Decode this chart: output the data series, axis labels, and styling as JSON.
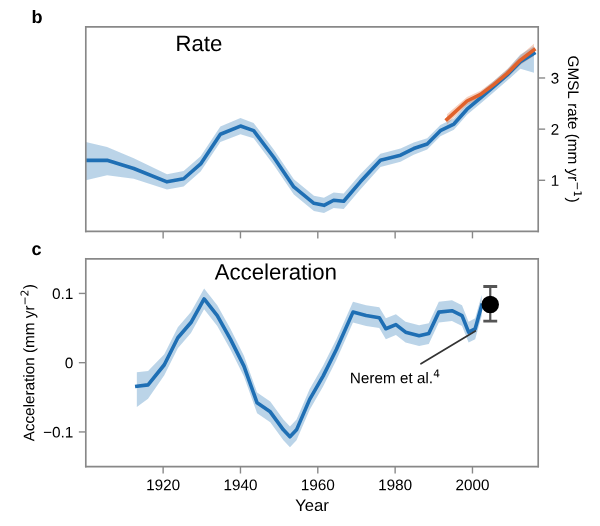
{
  "chart_data": [
    {
      "type": "line",
      "title": "Rate",
      "ylabel": "GMSL rate (mm yr$^{−1}$)",
      "annotations": [
        "b"
      ],
      "xlim": [
        1900,
        2017
      ],
      "xticks": [
        1920,
        1940,
        1960,
        1980,
        2000
      ],
      "ylim": [
        0,
        4
      ],
      "yticks": [
        1,
        2,
        3
      ],
      "tick_labels": "y",
      "grid": false,
      "legend": false,
      "series": [
        {
          "color": "#1f6fb4",
          "x": [
            1900,
            1905.5,
            1912.4,
            1921,
            1925.3,
            1929.7,
            1934.8,
            1940,
            1943.4,
            1948.6,
            1953.8,
            1959,
            1961.6,
            1964.1,
            1966.7,
            1971,
            1976.2,
            1981.4,
            1984.8,
            1988.3,
            1991.7,
            1995.2,
            1998.6,
            2002.1,
            2005.5,
            2009,
            2012.4,
            2015.9
          ],
          "values": [
            1.39,
            1.39,
            1.23,
            0.97,
            1.03,
            1.32,
            1.9,
            2.06,
            1.97,
            1.45,
            0.87,
            0.55,
            0.51,
            0.61,
            0.59,
            0.97,
            1.39,
            1.49,
            1.62,
            1.71,
            1.97,
            2.1,
            2.39,
            2.61,
            2.83,
            3.06,
            3.32,
            3.48
          ],
          "lower": [
            1.0,
            1.1,
            1.03,
            0.82,
            0.88,
            1.17,
            1.75,
            1.9,
            1.82,
            1.3,
            0.72,
            0.4,
            0.36,
            0.46,
            0.44,
            0.82,
            1.26,
            1.36,
            1.5,
            1.6,
            1.86,
            1.99,
            2.28,
            2.5,
            2.72,
            2.95,
            3.18,
            3.1
          ],
          "upper": [
            1.75,
            1.65,
            1.43,
            1.12,
            1.18,
            1.47,
            2.05,
            2.22,
            2.12,
            1.6,
            1.02,
            0.7,
            0.66,
            0.76,
            0.74,
            1.12,
            1.52,
            1.62,
            1.74,
            1.82,
            2.08,
            2.21,
            2.5,
            2.72,
            2.94,
            3.17,
            3.46,
            3.62
          ]
        },
        {
          "color": "#e0622c",
          "x": [
            1993.4,
            1998.6,
            2002.1,
            2005.5,
            2009,
            2012.4,
            2015.9
          ],
          "values": [
            2.19,
            2.55,
            2.68,
            2.87,
            3.09,
            3.35,
            3.55
          ],
          "lower": [
            2.09,
            2.47,
            2.61,
            2.8,
            3.01,
            3.26,
            3.43
          ],
          "upper": [
            2.29,
            2.63,
            2.75,
            2.94,
            3.17,
            3.44,
            3.67
          ]
        }
      ]
    },
    {
      "type": "line",
      "title": "Acceleration",
      "xlabel": "Year",
      "ylabel": "Acceleration (mm yr$^{−2}$)",
      "annotations": [
        "c",
        {
          "text": "Nerem et al.$^{4}$",
          "x": 2002,
          "y": 0.05
        }
      ],
      "xlim": [
        1900,
        2017
      ],
      "xticks": [
        1920,
        1940,
        1960,
        1980,
        2000
      ],
      "ylim": [
        -0.15,
        0.15
      ],
      "yticks": [
        {
          "value": -0.1,
          "label": "−0.1"
        },
        0,
        0.1
      ],
      "grid": false,
      "legend": false,
      "series": [
        {
          "color": "#1f6fb4",
          "x": [
            1913.2,
            1916.1,
            1920.3,
            1923.8,
            1927.2,
            1930.6,
            1934,
            1937.4,
            1940.9,
            1944.3,
            1947.7,
            1951.1,
            1952.8,
            1954.5,
            1957.9,
            1961.4,
            1964.8,
            1969.1,
            1972.5,
            1975.9,
            1977.6,
            1980.2,
            1982.7,
            1986.2,
            1988.7,
            1991.3,
            1994.7,
            1997.3,
            1999,
            2000.7,
            2002.4
          ],
          "values": [
            -0.034,
            -0.032,
            -0.003,
            0.036,
            0.058,
            0.092,
            0.068,
            0.034,
            -0.005,
            -0.058,
            -0.071,
            -0.097,
            -0.107,
            -0.097,
            -0.053,
            -0.019,
            0.019,
            0.073,
            0.068,
            0.065,
            0.049,
            0.055,
            0.044,
            0.039,
            0.042,
            0.073,
            0.075,
            0.068,
            0.044,
            0.049,
            0.083
          ],
          "lower": [
            -0.064,
            -0.052,
            -0.018,
            0.021,
            0.043,
            0.077,
            0.053,
            0.019,
            -0.02,
            -0.073,
            -0.086,
            -0.112,
            -0.122,
            -0.112,
            -0.068,
            -0.034,
            0.004,
            0.058,
            0.053,
            0.05,
            0.034,
            0.04,
            0.029,
            0.024,
            0.027,
            0.058,
            0.06,
            0.053,
            0.029,
            0.034,
            0.068
          ],
          "upper": [
            -0.014,
            -0.012,
            0.012,
            0.051,
            0.073,
            0.107,
            0.083,
            0.049,
            0.01,
            -0.043,
            -0.056,
            -0.082,
            -0.092,
            -0.082,
            -0.038,
            -0.004,
            0.034,
            0.088,
            0.083,
            0.08,
            0.064,
            0.07,
            0.059,
            0.054,
            0.057,
            0.088,
            0.09,
            0.083,
            0.059,
            0.064,
            0.098
          ]
        },
        {
          "type": "scatter",
          "color": "#000000",
          "marker": "circle",
          "x": [
            2004.6
          ],
          "values": [
            0.084
          ],
          "errors": [
            [
              0.06,
              0.11
            ]
          ]
        }
      ]
    }
  ]
}
